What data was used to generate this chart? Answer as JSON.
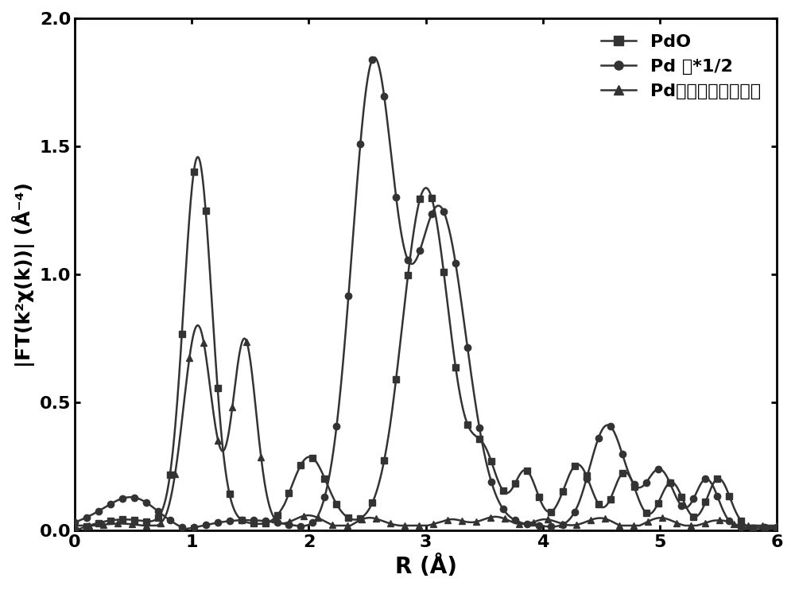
{
  "title": "",
  "xlabel": "R (Å)",
  "ylabel": "|FT(k²χ(k))| (Å⁻⁴)",
  "xlim": [
    0,
    6
  ],
  "ylim": [
    0,
    2.0
  ],
  "yticks": [
    0.0,
    0.5,
    1.0,
    1.5,
    2.0
  ],
  "xticks": [
    0,
    1,
    2,
    3,
    4,
    5,
    6
  ],
  "legend_pdo": "PdO",
  "legend_pd": "Pd 片*1/2",
  "legend_sac": "Pd单原子整体催化剂",
  "line_color": "#333333",
  "background_color": "#ffffff"
}
